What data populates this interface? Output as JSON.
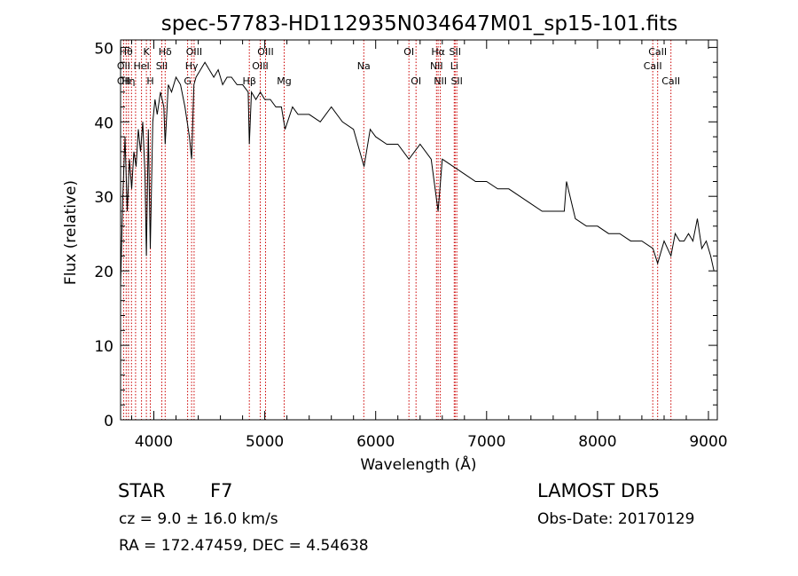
{
  "chart_data": {
    "type": "line",
    "title": "spec-57783-HD112935N034647M01_sp15-101.fits",
    "xlabel": "Wavelength (Å)",
    "ylabel": "Flux (relative)",
    "xlim": [
      3700,
      9080
    ],
    "ylim": [
      0,
      51
    ],
    "x_ticks": [
      4000,
      5000,
      6000,
      7000,
      8000,
      9000
    ],
    "y_ticks": [
      0,
      10,
      20,
      30,
      40,
      50
    ],
    "grid": false,
    "series": [
      {
        "x": [
          3700,
          3720,
          3740,
          3760,
          3780,
          3800,
          3820,
          3840,
          3860,
          3880,
          3900,
          3920,
          3933,
          3950,
          3968,
          3990,
          4010,
          4030,
          4060,
          4090,
          4102,
          4130,
          4160,
          4200,
          4240,
          4280,
          4300,
          4320,
          4340,
          4361,
          4380,
          4420,
          4460,
          4500,
          4540,
          4580,
          4620,
          4660,
          4700,
          4750,
          4800,
          4850,
          4861,
          4880,
          4920,
          4960,
          5000,
          5050,
          5100,
          5150,
          5183,
          5250,
          5300,
          5400,
          5500,
          5600,
          5700,
          5800,
          5895,
          5950,
          6000,
          6100,
          6200,
          6300,
          6400,
          6500,
          6563,
          6600,
          6700,
          6800,
          6900,
          7000,
          7100,
          7200,
          7300,
          7400,
          7500,
          7600,
          7700,
          7720,
          7800,
          7900,
          8000,
          8100,
          8200,
          8300,
          8400,
          8500,
          8542,
          8600,
          8662,
          8700,
          8740,
          8780,
          8820,
          8860,
          8900,
          8940,
          8980,
          9020,
          9050
        ],
        "y": [
          18,
          30,
          38,
          28,
          35,
          31,
          36,
          34,
          39,
          36,
          40,
          33,
          22,
          39,
          23,
          40,
          43,
          41,
          44,
          42,
          37,
          45,
          44,
          46,
          45,
          42,
          40,
          38,
          35,
          45,
          46,
          47,
          48,
          47,
          46,
          47,
          45,
          46,
          46,
          45,
          45,
          44,
          37,
          44,
          43,
          44,
          43,
          43,
          42,
          42,
          39,
          42,
          41,
          41,
          40,
          42,
          40,
          39,
          34,
          39,
          38,
          37,
          37,
          35,
          37,
          35,
          28,
          35,
          34,
          33,
          32,
          32,
          31,
          31,
          30,
          29,
          28,
          28,
          28,
          32,
          27,
          26,
          26,
          25,
          25,
          24,
          24,
          23,
          21,
          24,
          22,
          25,
          24,
          24,
          25,
          24,
          27,
          23,
          24,
          22,
          20
        ]
      }
    ],
    "lines": [
      {
        "x": 3727,
        "label": "OII"
      },
      {
        "x": 3750,
        "label": "Hθ"
      },
      {
        "x": 3771,
        "label": "Hη"
      },
      {
        "x": 3798,
        "label": "Hθ"
      },
      {
        "x": 3835,
        "label": "Hη"
      },
      {
        "x": 3889,
        "label": "HeI"
      },
      {
        "x": 3933,
        "label": "K"
      },
      {
        "x": 3968,
        "label": "H"
      },
      {
        "x": 4072,
        "label": "SII"
      },
      {
        "x": 4102,
        "label": "Hδ"
      },
      {
        "x": 4304,
        "label": "G"
      },
      {
        "x": 4340,
        "label": "Hγ"
      },
      {
        "x": 4363,
        "label": "OIII"
      },
      {
        "x": 4861,
        "label": "Hβ"
      },
      {
        "x": 4959,
        "label": "OIII"
      },
      {
        "x": 5007,
        "label": "OIII"
      },
      {
        "x": 5175,
        "label": "Mg"
      },
      {
        "x": 5893,
        "label": "Na"
      },
      {
        "x": 6300,
        "label": "OI"
      },
      {
        "x": 6364,
        "label": "OI"
      },
      {
        "x": 6548,
        "label": "NII"
      },
      {
        "x": 6563,
        "label": "Hα"
      },
      {
        "x": 6583,
        "label": "NII"
      },
      {
        "x": 6708,
        "label": "Li"
      },
      {
        "x": 6716,
        "label": "SII"
      },
      {
        "x": 6731,
        "label": "SII"
      },
      {
        "x": 8498,
        "label": "CaII"
      },
      {
        "x": 8542,
        "label": "CaII"
      },
      {
        "x": 8662,
        "label": "CaII"
      }
    ],
    "line_labels": [
      {
        "text": "Hθ",
        "row": 1,
        "x": 3750
      },
      {
        "text": "K",
        "row": 1,
        "x": 3933
      },
      {
        "text": "Hδ",
        "row": 1,
        "x": 4102
      },
      {
        "text": "OIII",
        "row": 1,
        "x": 4363
      },
      {
        "text": "OIII",
        "row": 1,
        "x": 5007
      },
      {
        "text": "OI",
        "row": 1,
        "x": 6300
      },
      {
        "text": "Hα",
        "row": 1,
        "x": 6563
      },
      {
        "text": "SII",
        "row": 1,
        "x": 6716
      },
      {
        "text": "CaII",
        "row": 1,
        "x": 8542
      },
      {
        "text": "OII",
        "row": 2,
        "x": 3727
      },
      {
        "text": "HeI",
        "row": 2,
        "x": 3889
      },
      {
        "text": "SII",
        "row": 2,
        "x": 4072
      },
      {
        "text": "Hγ",
        "row": 2,
        "x": 4340
      },
      {
        "text": "OIII",
        "row": 2,
        "x": 4959
      },
      {
        "text": "Na",
        "row": 2,
        "x": 5893
      },
      {
        "text": "NII",
        "row": 2,
        "x": 6548
      },
      {
        "text": "Li",
        "row": 2,
        "x": 6708
      },
      {
        "text": "CaII",
        "row": 2,
        "x": 8498
      },
      {
        "text": "OII",
        "row": 3,
        "x": 3727
      },
      {
        "text": "Hη",
        "row": 3,
        "x": 3771
      },
      {
        "text": "H",
        "row": 3,
        "x": 3968
      },
      {
        "text": "G",
        "row": 3,
        "x": 4304
      },
      {
        "text": "Hβ",
        "row": 3,
        "x": 4861
      },
      {
        "text": "Mg",
        "row": 3,
        "x": 5175
      },
      {
        "text": "OI",
        "row": 3,
        "x": 6364
      },
      {
        "text": "NII",
        "row": 3,
        "x": 6583
      },
      {
        "text": "SII",
        "row": 3,
        "x": 6731
      },
      {
        "text": "CaII",
        "row": 3,
        "x": 8662
      }
    ],
    "colors": {
      "spectrum": "#000000",
      "line_markers": "#cc0000"
    }
  },
  "info": {
    "type_label": "STAR",
    "subclass": "F7",
    "cz": "cz = 9.0 ± 16.0 km/s",
    "radec": "RA = 172.47459, DEC =   4.54638",
    "survey": "LAMOST DR5",
    "obs_date": "Obs-Date: 20170129"
  }
}
